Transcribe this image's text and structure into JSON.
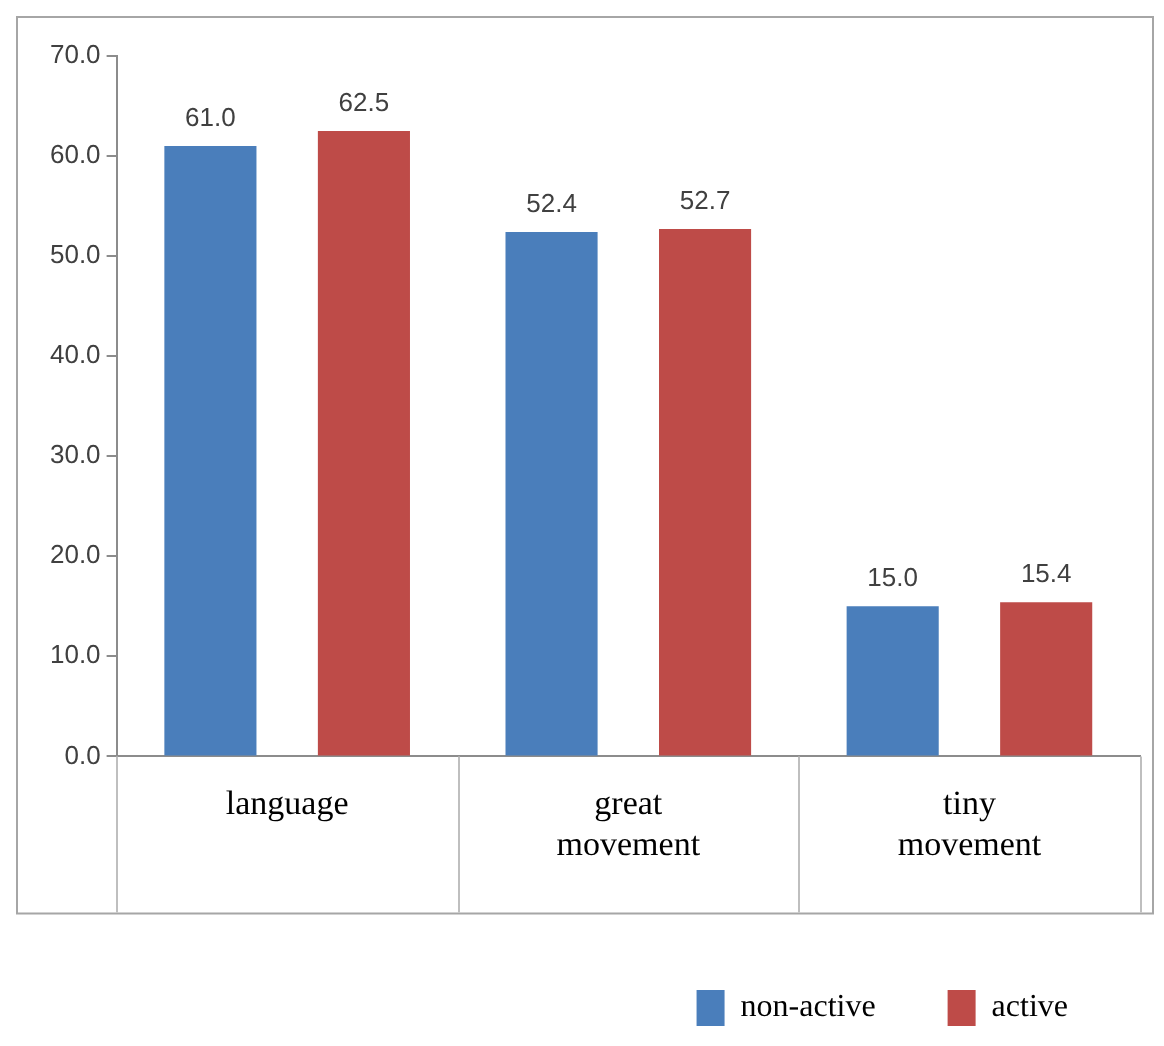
{
  "chart_data": {
    "type": "bar",
    "categories": [
      "language",
      "great movement",
      "tiny movement"
    ],
    "series": [
      {
        "name": "non-active",
        "color": "#4a7ebb",
        "values": [
          61.0,
          52.4,
          15.0
        ],
        "value_labels": [
          "61.0",
          "52.4",
          "15.0"
        ]
      },
      {
        "name": "active",
        "color": "#be4b48",
        "values": [
          62.5,
          52.7,
          15.4
        ],
        "value_labels": [
          "62.5",
          "52.7",
          "15.4"
        ]
      }
    ],
    "ylim": [
      0,
      70
    ],
    "yticks": [
      {
        "value": 0,
        "label": "0.0"
      },
      {
        "value": 10,
        "label": "10.0"
      },
      {
        "value": 20,
        "label": "20.0"
      },
      {
        "value": 30,
        "label": "30.0"
      },
      {
        "value": 40,
        "label": "40.0"
      },
      {
        "value": 50,
        "label": "50.0"
      },
      {
        "value": 60,
        "label": "60.0"
      },
      {
        "value": 70,
        "label": "70.0"
      }
    ],
    "grid": false,
    "legend": "bottom right"
  }
}
